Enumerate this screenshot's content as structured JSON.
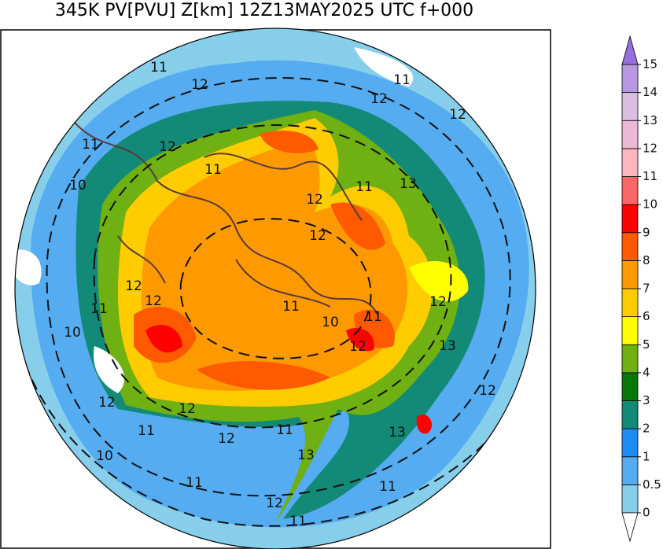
{
  "header": {
    "title": "345K PV[PVU] Z[km] 12Z13MAY2025 UTC f+000"
  },
  "map": {
    "contour_labels": [
      "11",
      "12",
      "11",
      "12",
      "12",
      "11",
      "12",
      "11",
      "10",
      "11",
      "13",
      "12",
      "12",
      "12",
      "12",
      "11",
      "11",
      "11",
      "10",
      "12",
      "10",
      "12",
      "13",
      "12",
      "12",
      "12",
      "11",
      "11",
      "13",
      "12",
      "10",
      "13",
      "11",
      "11",
      "12",
      "11"
    ]
  },
  "colorbar": {
    "levels": [
      0,
      0.5,
      1,
      2,
      3,
      4,
      5,
      6,
      7,
      8,
      9,
      10,
      11,
      12,
      13,
      14,
      15
    ],
    "colors": [
      "#87ceeb",
      "#56acf0",
      "#1e8cf5",
      "#138a78",
      "#08780a",
      "#6fb012",
      "#ffff00",
      "#ffcc00",
      "#ff9900",
      "#ff5a00",
      "#ff0000",
      "#ff6666",
      "#ffb6c1",
      "#ebb8d6",
      "#d8bfe0",
      "#b898e0"
    ],
    "under_color": "#ffffff",
    "over_color": "#9370db"
  }
}
